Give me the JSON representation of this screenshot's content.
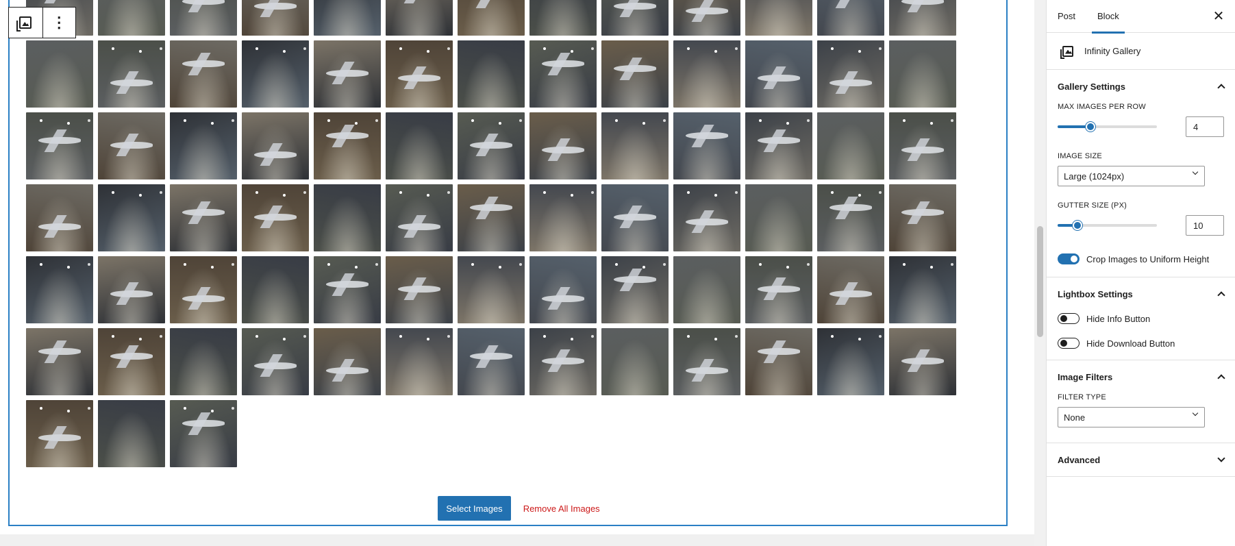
{
  "toolbar": {
    "block_icon": "gallery-icon",
    "options_icon": "more-vertical-icon",
    "options_label": "⋮"
  },
  "gallery": {
    "tile_count": 81,
    "tile_palette": [
      "#3c4148",
      "#5b5e60",
      "#4b4f49",
      "#6d6a63",
      "#2e3136",
      "#7c7467",
      "#4f4438",
      "#383c45",
      "#575b52",
      "#6a5d4a",
      "#44484f",
      "#55606b"
    ],
    "actions": {
      "select_images": "Select Images",
      "remove_all": "Remove All Images"
    }
  },
  "sidebar": {
    "tabs": [
      {
        "label": "Post",
        "active": false
      },
      {
        "label": "Block",
        "active": true
      }
    ],
    "close_icon": "close-icon",
    "close_glyph": "✕",
    "block_card": {
      "icon": "gallery-icon",
      "title": "Infinity Gallery"
    },
    "gallery_settings": {
      "title": "Gallery Settings",
      "max_images_label": "MAX IMAGES PER ROW",
      "max_images_value": "4",
      "max_images_fraction": 0.33,
      "image_size_label": "IMAGE SIZE",
      "image_size_value": "Large (1024px)",
      "gutter_label": "GUTTER SIZE (PX)",
      "gutter_value": "10",
      "gutter_fraction": 0.2,
      "crop_label": "Crop Images to Uniform Height",
      "crop_on": true
    },
    "lightbox_settings": {
      "title": "Lightbox Settings",
      "hide_info_label": "Hide Info Button",
      "hide_info_on": false,
      "hide_download_label": "Hide Download Button",
      "hide_download_on": false
    },
    "image_filters": {
      "title": "Image Filters",
      "filter_type_label": "FILTER TYPE",
      "filter_type_value": "None"
    },
    "advanced": {
      "title": "Advanced"
    }
  },
  "colors": {
    "accent": "#2271b1",
    "block_border": "#2a7fc4",
    "danger": "#cc1818"
  }
}
